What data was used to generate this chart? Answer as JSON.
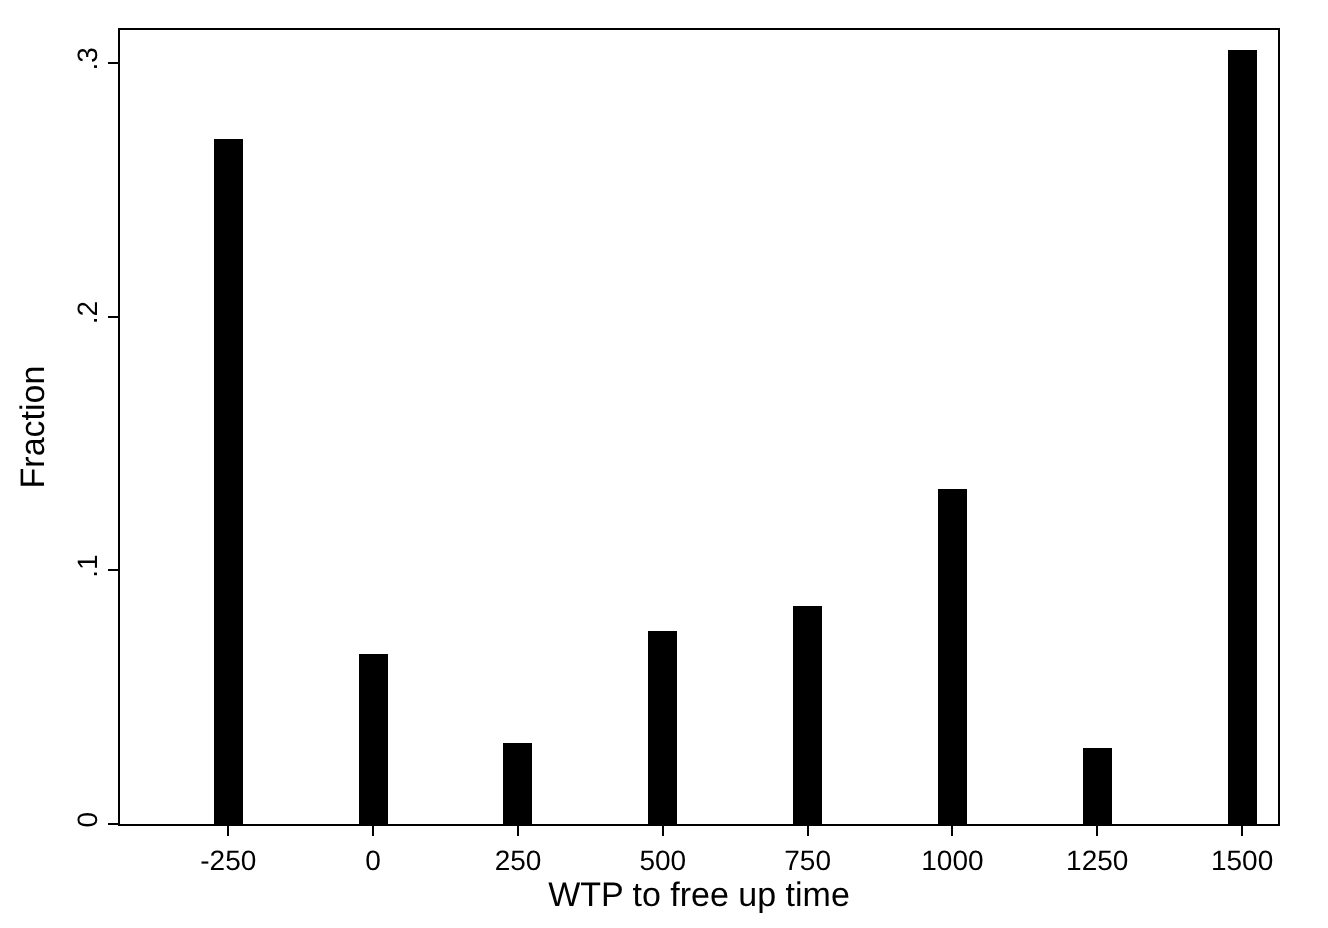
{
  "chart_data": {
    "type": "bar",
    "xlabel": "WTP to free up time",
    "ylabel": "Fraction",
    "x": [
      -250,
      0,
      250,
      500,
      750,
      1000,
      1250,
      1500
    ],
    "values": [
      0.27,
      0.067,
      0.032,
      0.076,
      0.086,
      0.132,
      0.03,
      0.305
    ],
    "color": "#000000",
    "xlim": [
      -437,
      1562
    ],
    "xticks": [
      -250,
      0,
      250,
      500,
      750,
      1000,
      1250,
      1500
    ],
    "ylim": [
      0,
      0.313
    ],
    "yticks": [
      {
        "value": 0,
        "label": "0"
      },
      {
        "value": 0.1,
        "label": ".1"
      },
      {
        "value": 0.2,
        "label": ".2"
      },
      {
        "value": 0.3,
        "label": ".3"
      }
    ],
    "grid": false
  }
}
